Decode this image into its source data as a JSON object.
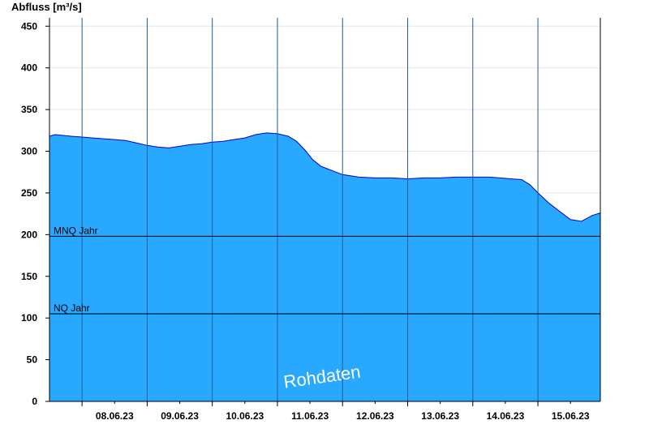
{
  "chart_data": {
    "type": "area",
    "ylabel": "Abfluss [m³/s]",
    "ylim": [
      0,
      460
    ],
    "yticks": [
      0,
      50,
      100,
      150,
      200,
      250,
      300,
      350,
      400,
      450
    ],
    "xlim": [
      "07.06.23 12:00",
      "15.06.23 23:00"
    ],
    "xtick_labels": [
      "08.06.23",
      "09.06.23",
      "10.06.23",
      "11.06.23",
      "12.06.23",
      "13.06.23",
      "14.06.23",
      "15.06.23"
    ],
    "day_boundaries": [
      "08.06.23 00:00",
      "09.06.23 00:00",
      "10.06.23 00:00",
      "11.06.23 00:00",
      "12.06.23 00:00",
      "13.06.23 00:00",
      "14.06.23 00:00",
      "15.06.23 00:00"
    ],
    "grid": "horizontal",
    "fill_color": "#29a8ff",
    "line_color": "#0000cc",
    "series": [
      {
        "x": [
          "07.06.23 12:00",
          "07.06.23 14:00",
          "07.06.23 17:00",
          "07.06.23 20:00",
          "08.06.23 00:00",
          "08.06.23 04:00",
          "08.06.23 08:00",
          "08.06.23 12:00",
          "08.06.23 16:00",
          "08.06.23 20:00",
          "09.06.23 00:00",
          "09.06.23 04:00",
          "09.06.23 08:00",
          "09.06.23 12:00",
          "09.06.23 16:00",
          "09.06.23 20:00",
          "10.06.23 00:00",
          "10.06.23 04:00",
          "10.06.23 08:00",
          "10.06.23 12:00",
          "10.06.23 16:00",
          "10.06.23 20:00",
          "11.06.23 00:00",
          "11.06.23 04:00",
          "11.06.23 07:00",
          "11.06.23 10:00",
          "11.06.23 13:00",
          "11.06.23 16:00",
          "11.06.23 20:00",
          "12.06.23 00:00",
          "12.06.23 06:00",
          "12.06.23 12:00",
          "12.06.23 18:00",
          "13.06.23 00:00",
          "13.06.23 06:00",
          "13.06.23 12:00",
          "13.06.23 18:00",
          "14.06.23 00:00",
          "14.06.23 06:00",
          "14.06.23 10:00",
          "14.06.23 14:00",
          "14.06.23 18:00",
          "14.06.23 21:00",
          "15.06.23 00:00",
          "15.06.23 04:00",
          "15.06.23 08:00",
          "15.06.23 12:00",
          "15.06.23 16:00",
          "15.06.23 20:00",
          "15.06.23 23:00"
        ],
        "y": [
          318,
          320,
          319,
          318,
          317,
          316,
          315,
          314,
          313,
          310,
          307,
          305,
          304,
          306,
          308,
          309,
          311,
          312,
          314,
          316,
          320,
          322,
          321,
          318,
          312,
          302,
          290,
          282,
          277,
          272,
          269,
          268,
          268,
          267,
          268,
          268,
          269,
          269,
          269,
          268,
          267,
          266,
          260,
          250,
          238,
          228,
          218,
          216,
          223,
          226
        ]
      }
    ],
    "reference_lines": [
      {
        "name": "MNQ Jahr",
        "value": 198
      },
      {
        "name": "NQ Jahr",
        "value": 105
      }
    ],
    "watermark": "Rohdaten"
  }
}
